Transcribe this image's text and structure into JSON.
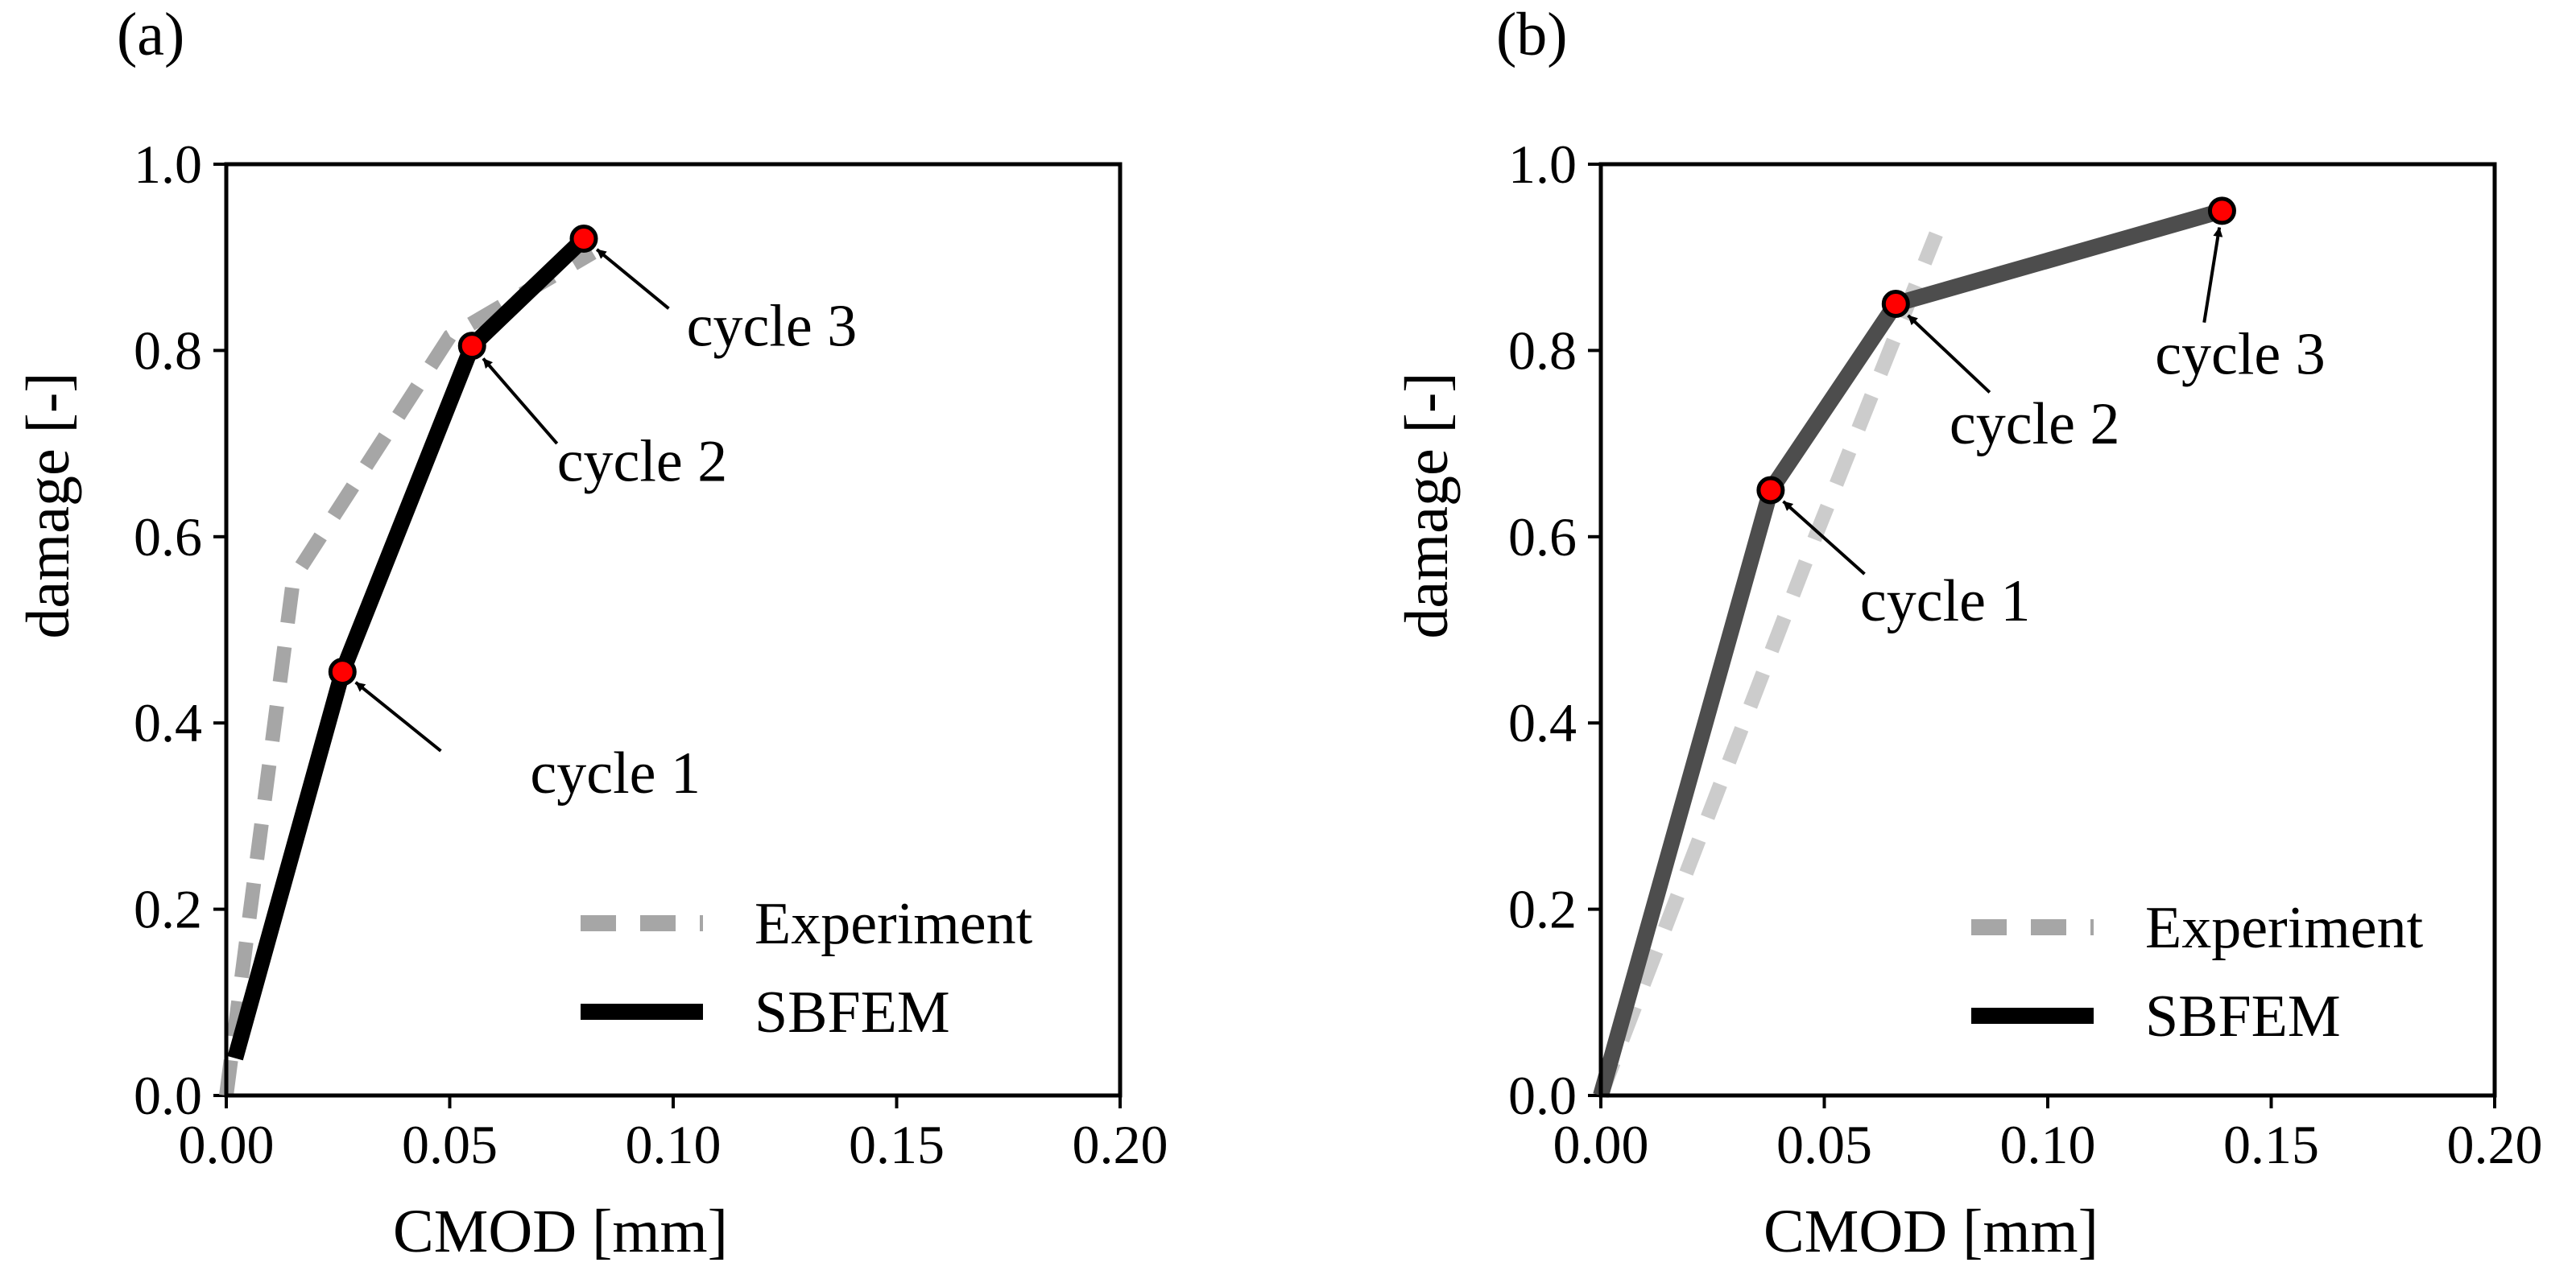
{
  "colors": {
    "experiment_a": "#a6a6a6",
    "experiment_b": "#cccccc",
    "sbfem_a": "#000000",
    "sbfem_b": "#4d4d4d",
    "marker_fill": "#ff0000",
    "marker_edge": "#000000",
    "legend_experiment": "#a6a6a6",
    "legend_sbfem": "#000000"
  },
  "chart_data": [
    {
      "type": "line",
      "panel_label": "(a)",
      "xlabel": "CMOD [mm]",
      "ylabel": "damage [-]",
      "xlim": [
        0,
        0.2
      ],
      "ylim": [
        0,
        1.0
      ],
      "xticks": [
        0,
        0.05,
        0.1,
        0.15,
        0.2
      ],
      "xtick_labels": [
        "0.00",
        "0.05",
        "0.10",
        "0.15",
        "0.20"
      ],
      "yticks": [
        0,
        0.2,
        0.4,
        0.6,
        0.8,
        1.0
      ],
      "ytick_labels": [
        "0.0",
        "0.2",
        "0.4",
        "0.6",
        "0.8",
        "1.0"
      ],
      "grid": false,
      "legend_position": "bottom-right",
      "series": [
        {
          "name": "Experiment",
          "style": "dashed",
          "color_key": "experiment_a",
          "points": [
            [
              0.0,
              0.0
            ],
            [
              0.015,
              0.555
            ],
            [
              0.05,
              0.815
            ],
            [
              0.082,
              0.905
            ]
          ]
        },
        {
          "name": "SBFEM",
          "style": "solid",
          "color_key": "sbfem_a",
          "points": [
            [
              0.002,
              0.04
            ],
            [
              0.026,
              0.455
            ],
            [
              0.055,
              0.805
            ],
            [
              0.08,
              0.92
            ]
          ],
          "markers": [
            1,
            2,
            3
          ]
        }
      ],
      "annotations": [
        {
          "text": "cycle 1",
          "point": [
            0.026,
            0.455
          ],
          "text_at": [
            0.068,
            0.325
          ],
          "tail_at": [
            0.048,
            0.37
          ]
        },
        {
          "text": "cycle 2",
          "point": [
            0.055,
            0.805
          ],
          "text_at": [
            0.074,
            0.66
          ],
          "tail_at": [
            0.074,
            0.7
          ]
        },
        {
          "text": "cycle 3",
          "point": [
            0.08,
            0.92
          ],
          "text_at": [
            0.103,
            0.805
          ],
          "tail_at": [
            0.099,
            0.845
          ]
        }
      ]
    },
    {
      "type": "line",
      "panel_label": "(b)",
      "xlabel": "CMOD [mm]",
      "ylabel": "damage [-]",
      "xlim": [
        0,
        0.2
      ],
      "ylim": [
        0,
        1.0
      ],
      "xticks": [
        0,
        0.05,
        0.1,
        0.15,
        0.2
      ],
      "xtick_labels": [
        "0.00",
        "0.05",
        "0.10",
        "0.15",
        "0.20"
      ],
      "yticks": [
        0,
        0.2,
        0.4,
        0.6,
        0.8,
        1.0
      ],
      "ytick_labels": [
        "0.0",
        "0.2",
        "0.4",
        "0.6",
        "0.8",
        "1.0"
      ],
      "grid": false,
      "legend_position": "bottom-right",
      "series": [
        {
          "name": "Experiment",
          "style": "dashed",
          "color_key": "experiment_b",
          "points": [
            [
              0.0,
              0.0
            ],
            [
              0.048,
              0.6
            ],
            [
              0.075,
              0.925
            ]
          ]
        },
        {
          "name": "SBFEM",
          "style": "solid",
          "color_key": "sbfem_b",
          "points": [
            [
              0.0,
              0.0
            ],
            [
              0.038,
              0.65
            ],
            [
              0.066,
              0.85
            ],
            [
              0.139,
              0.95
            ]
          ],
          "markers": [
            1,
            2,
            3
          ]
        }
      ],
      "annotations": [
        {
          "text": "cycle 1",
          "point": [
            0.038,
            0.65
          ],
          "text_at": [
            0.058,
            0.51
          ],
          "tail_at": [
            0.059,
            0.56
          ]
        },
        {
          "text": "cycle 2",
          "point": [
            0.066,
            0.85
          ],
          "text_at": [
            0.078,
            0.7
          ],
          "tail_at": [
            0.087,
            0.755
          ]
        },
        {
          "text": "cycle 3",
          "point": [
            0.139,
            0.95
          ],
          "text_at": [
            0.124,
            0.775
          ],
          "tail_at": [
            0.135,
            0.83
          ]
        }
      ]
    }
  ]
}
